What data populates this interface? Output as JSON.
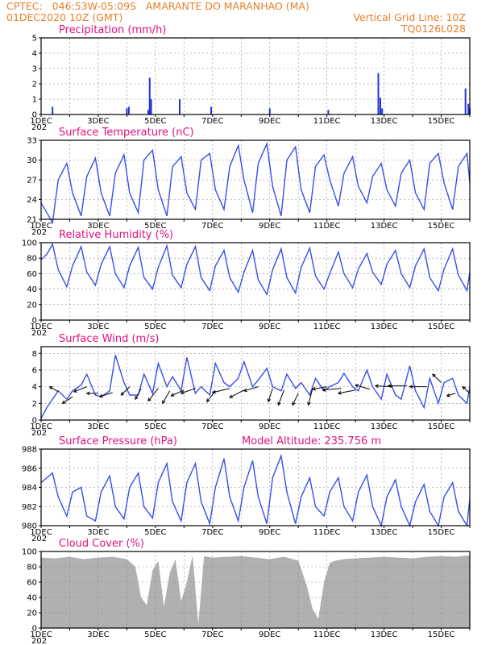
{
  "header": {
    "line1_left": "CPTEC:   046:53W-05:09S   AMARANTE DO MARANHAO (MA)",
    "line2_left": "01DEC2020 10Z (GMT)",
    "line2_right": "Vertical Grid Line: 10Z",
    "line3_right": "TQ0126L028"
  },
  "x_tick_labels": [
    "1DEC",
    "3DEC",
    "5DEC",
    "7DEC",
    "9DEC",
    "11DEC",
    "13DEC",
    "15DEC"
  ],
  "x_year_fragment": "202",
  "colors": {
    "line": "#3a4ee8",
    "bar": "#2233dd",
    "title": "#e0117f",
    "header": "#e8802a",
    "cloud": "#b0b0b0",
    "grid": "#888888"
  },
  "chart_data": [
    {
      "type": "bar",
      "title": "Precipitation (mm/h)",
      "yticks": [
        0,
        1,
        2,
        3,
        4,
        5
      ],
      "ylim": [
        0,
        5
      ],
      "x_unit": "day of December 2020 (decimal, 1.0 = 1DEC 00Z)",
      "x": [
        1.4,
        4.0,
        4.07,
        4.75,
        4.8,
        4.85,
        5.85,
        6.95,
        9.0,
        11.05,
        12.8,
        12.87,
        12.93,
        15.85,
        15.95,
        16.0
      ],
      "values": [
        0.5,
        0.4,
        0.5,
        0.3,
        2.4,
        1.0,
        1.0,
        0.5,
        0.4,
        0.3,
        2.7,
        1.1,
        0.4,
        1.7,
        0.7,
        0.4
      ]
    },
    {
      "type": "line",
      "title": "Surface Temperature (nC)",
      "yticks": [
        21,
        24,
        27,
        30,
        33
      ],
      "ylim": [
        21,
        33
      ],
      "series": [
        {
          "x": [
            1.0,
            1.2,
            1.4,
            1.6,
            1.9,
            2.1,
            2.4,
            2.6,
            2.9,
            3.1,
            3.4,
            3.6,
            3.9,
            4.1,
            4.4,
            4.6,
            4.9,
            5.1,
            5.4,
            5.6,
            5.9,
            6.1,
            6.4,
            6.6,
            6.9,
            7.1,
            7.4,
            7.6,
            7.9,
            8.1,
            8.4,
            8.6,
            8.9,
            9.1,
            9.4,
            9.6,
            9.9,
            10.1,
            10.4,
            10.6,
            10.9,
            11.1,
            11.4,
            11.6,
            11.9,
            12.1,
            12.4,
            12.6,
            12.9,
            13.1,
            13.4,
            13.6,
            13.9,
            14.1,
            14.4,
            14.6,
            14.9,
            15.1,
            15.4,
            15.6,
            15.9,
            16.0
          ],
          "values": [
            23.5,
            22.0,
            20.5,
            27.0,
            29.5,
            25.0,
            21.5,
            27.5,
            30.3,
            25.0,
            21.5,
            28.0,
            30.8,
            25.0,
            22.0,
            30.0,
            31.5,
            25.5,
            21.5,
            29.0,
            30.5,
            25.0,
            22.5,
            30.0,
            31.0,
            25.5,
            22.5,
            29.0,
            32.2,
            27.0,
            22.0,
            29.5,
            32.5,
            26.0,
            21.5,
            30.0,
            32.0,
            25.5,
            22.0,
            29.0,
            30.8,
            27.0,
            23.0,
            28.0,
            30.5,
            26.0,
            23.5,
            27.5,
            29.5,
            25.5,
            23.0,
            28.0,
            30.0,
            25.0,
            22.5,
            29.5,
            31.0,
            26.5,
            22.5,
            29.0,
            31.0,
            26.5
          ]
        }
      ]
    },
    {
      "type": "line",
      "title": "Relative Humidity (%)",
      "yticks": [
        0,
        20,
        40,
        60,
        80,
        100
      ],
      "ylim": [
        0,
        100
      ],
      "series": [
        {
          "x": [
            1.0,
            1.2,
            1.4,
            1.6,
            1.9,
            2.1,
            2.4,
            2.6,
            2.9,
            3.1,
            3.4,
            3.6,
            3.9,
            4.1,
            4.4,
            4.6,
            4.9,
            5.1,
            5.4,
            5.6,
            5.9,
            6.1,
            6.4,
            6.6,
            6.9,
            7.1,
            7.4,
            7.6,
            7.9,
            8.1,
            8.4,
            8.6,
            8.9,
            9.1,
            9.4,
            9.6,
            9.9,
            10.1,
            10.4,
            10.6,
            10.9,
            11.1,
            11.4,
            11.6,
            11.9,
            12.1,
            12.4,
            12.6,
            12.9,
            13.1,
            13.4,
            13.6,
            13.9,
            14.1,
            14.4,
            14.6,
            14.9,
            15.1,
            15.4,
            15.6,
            15.9,
            16.0
          ],
          "values": [
            78.0,
            85.0,
            98.0,
            65.0,
            43.0,
            70.0,
            95.0,
            62.0,
            45.0,
            72.0,
            95.0,
            60.0,
            42.0,
            70.0,
            94.0,
            55.0,
            40.0,
            68.0,
            96.0,
            58.0,
            42.0,
            72.0,
            95.0,
            55.0,
            38.0,
            70.0,
            90.0,
            55.0,
            36.0,
            62.0,
            90.0,
            52.0,
            33.0,
            65.0,
            92.0,
            55.0,
            35.0,
            68.0,
            93.0,
            57.0,
            40.0,
            60.0,
            88.0,
            60.0,
            42.0,
            66.0,
            86.0,
            62.0,
            46.0,
            72.0,
            90.0,
            60.0,
            42.0,
            70.0,
            92.0,
            55.0,
            38.0,
            66.0,
            92.0,
            58.0,
            38.0,
            62.0
          ]
        }
      ]
    },
    {
      "type": "line",
      "title": "Surface Wind (m/s)",
      "yticks": [
        0,
        2,
        4,
        6,
        8
      ],
      "ylim": [
        0,
        8.8
      ],
      "series": [
        {
          "x": [
            1.0,
            1.2,
            1.4,
            1.6,
            1.9,
            2.1,
            2.4,
            2.6,
            2.9,
            3.1,
            3.4,
            3.6,
            3.9,
            4.1,
            4.4,
            4.6,
            4.9,
            5.1,
            5.4,
            5.6,
            5.9,
            6.1,
            6.4,
            6.6,
            6.9,
            7.1,
            7.4,
            7.6,
            7.9,
            8.1,
            8.4,
            8.6,
            8.9,
            9.1,
            9.4,
            9.6,
            9.9,
            10.1,
            10.4,
            10.6,
            10.9,
            11.1,
            11.4,
            11.6,
            11.9,
            12.1,
            12.4,
            12.6,
            12.9,
            13.1,
            13.4,
            13.6,
            13.9,
            14.1,
            14.4,
            14.6,
            14.9,
            15.1,
            15.4,
            15.6,
            15.9,
            16.0
          ],
          "values": [
            0.2,
            1.5,
            2.5,
            3.5,
            2.5,
            3.5,
            4.2,
            5.5,
            3.0,
            2.8,
            3.5,
            7.8,
            4.5,
            3.0,
            3.0,
            5.5,
            3.2,
            6.8,
            4.0,
            5.2,
            3.5,
            7.5,
            3.2,
            4.0,
            3.0,
            6.8,
            4.5,
            4.0,
            5.0,
            7.0,
            4.0,
            4.8,
            6.2,
            4.0,
            3.5,
            5.5,
            3.8,
            4.5,
            3.0,
            5.0,
            3.5,
            4.0,
            4.5,
            5.6,
            4.0,
            3.5,
            6.0,
            4.0,
            2.5,
            5.5,
            3.0,
            2.5,
            6.5,
            3.5,
            1.5,
            5.0,
            2.0,
            4.5,
            5.0,
            3.0,
            2.0,
            4.0
          ]
        }
      ],
      "barbs": [
        {
          "x": 1.6,
          "y": 3.4,
          "dx": -0.6,
          "dy": 0.6
        },
        {
          "x": 2.1,
          "y": 2.8,
          "dx": -0.7,
          "dy": -0.8
        },
        {
          "x": 2.6,
          "y": 4.0,
          "dx": -0.9,
          "dy": -0.6
        },
        {
          "x": 3.0,
          "y": 3.2,
          "dx": -0.8,
          "dy": 0.0
        },
        {
          "x": 3.5,
          "y": 3.3,
          "dx": -0.9,
          "dy": -0.5
        },
        {
          "x": 4.1,
          "y": 4.0,
          "dx": -0.6,
          "dy": -1.0
        },
        {
          "x": 4.5,
          "y": 3.8,
          "dx": -0.4,
          "dy": -1.3
        },
        {
          "x": 5.1,
          "y": 3.8,
          "dx": -0.7,
          "dy": -1.5
        },
        {
          "x": 5.5,
          "y": 3.5,
          "dx": -0.5,
          "dy": -1.5
        },
        {
          "x": 6.0,
          "y": 3.6,
          "dx": -0.9,
          "dy": -0.7
        },
        {
          "x": 6.4,
          "y": 3.8,
          "dx": -1.0,
          "dy": -0.6
        },
        {
          "x": 7.1,
          "y": 3.5,
          "dx": -0.6,
          "dy": -1.3
        },
        {
          "x": 7.6,
          "y": 3.8,
          "dx": -1.2,
          "dy": -0.5
        },
        {
          "x": 8.1,
          "y": 3.6,
          "dx": -1.0,
          "dy": -0.9
        },
        {
          "x": 8.6,
          "y": 4.0,
          "dx": -1.0,
          "dy": -0.5
        },
        {
          "x": 9.1,
          "y": 3.8,
          "dx": -0.3,
          "dy": -1.6
        },
        {
          "x": 9.5,
          "y": 3.6,
          "dx": -0.4,
          "dy": -1.8
        },
        {
          "x": 10.0,
          "y": 3.2,
          "dx": -0.4,
          "dy": -1.4
        },
        {
          "x": 10.5,
          "y": 3.8,
          "dx": -0.3,
          "dy": -2.0
        },
        {
          "x": 11.0,
          "y": 4.0,
          "dx": -1.0,
          "dy": -0.3
        },
        {
          "x": 11.5,
          "y": 3.8,
          "dx": -1.3,
          "dy": -0.2
        },
        {
          "x": 12.0,
          "y": 3.6,
          "dx": -1.2,
          "dy": -0.4
        },
        {
          "x": 12.5,
          "y": 3.7,
          "dx": -1.0,
          "dy": 0.5
        },
        {
          "x": 13.3,
          "y": 4.0,
          "dx": -1.2,
          "dy": 0.1
        },
        {
          "x": 13.8,
          "y": 4.1,
          "dx": -1.3,
          "dy": 0.0
        },
        {
          "x": 14.5,
          "y": 4.0,
          "dx": -1.2,
          "dy": 0.0
        },
        {
          "x": 15.0,
          "y": 4.5,
          "dx": -0.6,
          "dy": 1.0
        },
        {
          "x": 15.5,
          "y": 3.2,
          "dx": -0.6,
          "dy": -0.3
        },
        {
          "x": 16.0,
          "y": 3.2,
          "dx": -0.5,
          "dy": 0.8
        }
      ]
    },
    {
      "type": "line",
      "title": "Surface Pressure (hPa)",
      "annotation": "Model Altitude: 235.756 m",
      "yticks": [
        980,
        982,
        984,
        986,
        988
      ],
      "ylim": [
        980,
        988
      ],
      "series": [
        {
          "x": [
            1.0,
            1.2,
            1.4,
            1.6,
            1.9,
            2.1,
            2.4,
            2.6,
            2.9,
            3.1,
            3.4,
            3.6,
            3.9,
            4.1,
            4.4,
            4.6,
            4.9,
            5.1,
            5.4,
            5.6,
            5.9,
            6.1,
            6.4,
            6.6,
            6.9,
            7.1,
            7.4,
            7.6,
            7.9,
            8.1,
            8.4,
            8.6,
            8.9,
            9.1,
            9.4,
            9.6,
            9.9,
            10.1,
            10.4,
            10.6,
            10.9,
            11.1,
            11.4,
            11.6,
            11.9,
            12.1,
            12.4,
            12.6,
            12.9,
            13.1,
            13.4,
            13.6,
            13.9,
            14.1,
            14.4,
            14.6,
            14.9,
            15.1,
            15.4,
            15.6,
            15.9,
            16.0
          ],
          "values": [
            984.5,
            985.0,
            985.5,
            983.0,
            981.0,
            983.5,
            984.0,
            981.0,
            980.5,
            983.5,
            985.2,
            982.0,
            980.7,
            984.0,
            985.5,
            982.0,
            980.8,
            984.5,
            986.5,
            982.5,
            980.5,
            984.5,
            986.5,
            982.5,
            980.2,
            984.0,
            987.0,
            983.0,
            980.5,
            984.0,
            986.8,
            983.0,
            980.2,
            985.0,
            987.3,
            983.5,
            980.2,
            983.0,
            985.0,
            982.0,
            981.0,
            983.5,
            985.0,
            982.0,
            980.5,
            983.5,
            985.3,
            982.0,
            980.0,
            983.0,
            984.8,
            982.0,
            980.0,
            982.5,
            984.3,
            981.5,
            980.0,
            983.0,
            984.5,
            981.5,
            980.0,
            982.8
          ]
        }
      ]
    },
    {
      "type": "area",
      "title": "Cloud Cover (%)",
      "yticks": [
        0,
        20,
        40,
        60,
        80,
        100
      ],
      "ylim": [
        0,
        100
      ],
      "series": [
        {
          "x": [
            1.0,
            1.5,
            2.0,
            2.5,
            3.0,
            3.5,
            4.0,
            4.3,
            4.5,
            4.7,
            4.9,
            5.1,
            5.3,
            5.5,
            5.7,
            5.9,
            6.1,
            6.3,
            6.5,
            6.7,
            7.0,
            7.5,
            8.0,
            8.5,
            9.0,
            9.5,
            10.0,
            10.3,
            10.5,
            10.7,
            10.9,
            11.1,
            11.3,
            11.6,
            12.0,
            12.5,
            13.0,
            13.5,
            14.0,
            14.5,
            15.0,
            15.5,
            16.0
          ],
          "values": [
            92.0,
            91.0,
            93.0,
            90.0,
            92.0,
            93.0,
            90.0,
            80.0,
            40.0,
            30.0,
            75.0,
            88.0,
            28.0,
            72.0,
            90.0,
            35.0,
            60.0,
            95.0,
            5.0,
            94.0,
            92.0,
            93.0,
            94.0,
            92.0,
            90.0,
            93.0,
            88.0,
            55.0,
            25.0,
            12.0,
            60.0,
            85.0,
            88.0,
            90.0,
            91.0,
            92.0,
            93.0,
            92.0,
            91.0,
            93.0,
            94.0,
            93.0,
            95.0
          ]
        }
      ]
    }
  ]
}
